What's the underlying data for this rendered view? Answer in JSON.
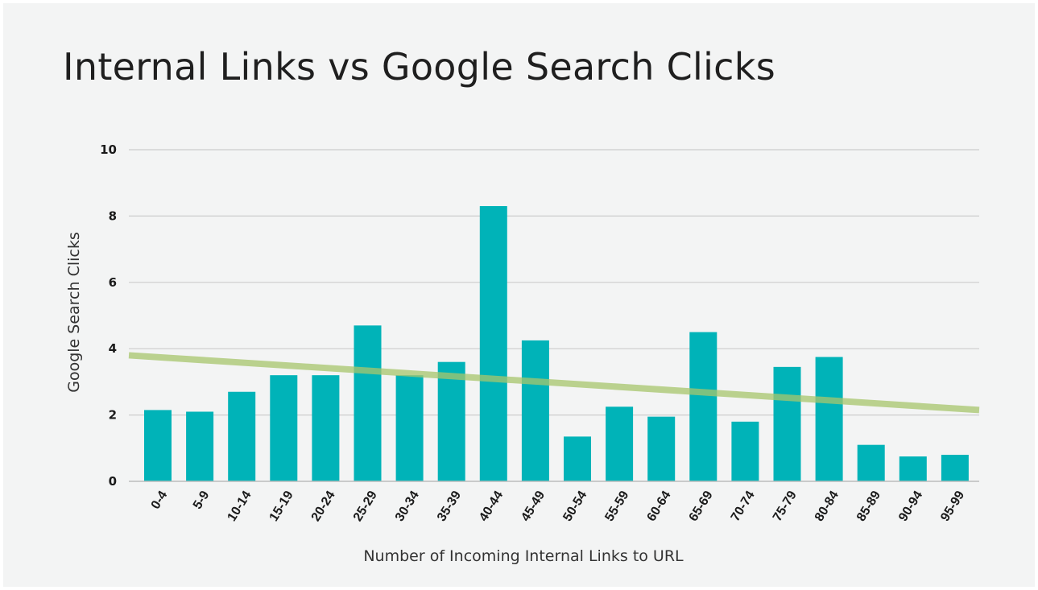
{
  "chart_data": {
    "type": "bar",
    "title": "Internal Links vs Google Search Clicks",
    "xlabel": "Number of Incoming Internal Links to URL",
    "ylabel": "Google Search Clicks",
    "categories": [
      "0-4",
      "5-9",
      "10-14",
      "15-19",
      "20-24",
      "25-29",
      "30-34",
      "35-39",
      "40-44",
      "45-49",
      "50-54",
      "55-59",
      "60-64",
      "65-69",
      "70-74",
      "75-79",
      "80-84",
      "85-89",
      "90-94",
      "95-99"
    ],
    "series": [
      {
        "values": [
          2.15,
          2.1,
          2.7,
          3.2,
          3.2,
          4.7,
          3.2,
          3.6,
          8.3,
          4.25,
          1.35,
          2.25,
          1.95,
          4.5,
          1.8,
          3.45,
          3.75,
          1.1,
          0.75,
          0.8
        ]
      }
    ],
    "trendline": {
      "start": 3.8,
      "end": 2.15
    },
    "ylim": [
      0,
      10
    ],
    "yticks": [
      0,
      2,
      4,
      6,
      8,
      10
    ],
    "grid": true,
    "legend": "none",
    "colors": {
      "bar": "#00b3b8",
      "trendline": "#a8c66c",
      "grid": "#cccccc"
    }
  }
}
